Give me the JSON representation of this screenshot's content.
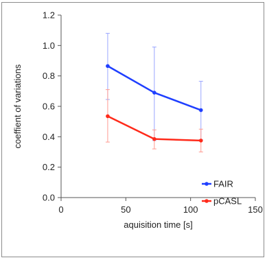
{
  "chart_data": {
    "type": "line",
    "title": "",
    "xlabel": "aquisition time [s]",
    "ylabel": "coeffient of variations",
    "xlim": [
      0,
      150
    ],
    "ylim": [
      0,
      1.2
    ],
    "x_ticks": [
      0,
      50,
      100,
      150
    ],
    "x_tick_labels": [
      "0",
      "50",
      "100",
      "150"
    ],
    "y_ticks": [
      0,
      0.2,
      0.4,
      0.6,
      0.8,
      1.0,
      1.2
    ],
    "y_tick_labels": [
      "0.0",
      "0.2",
      "0.4",
      "0.6",
      "0.8",
      "1.0",
      "1.2"
    ],
    "grid": false,
    "legend_position": "bottom-right",
    "series": [
      {
        "name": "FAIR",
        "color": "#1f3fff",
        "x": [
          36,
          72,
          108
        ],
        "y": [
          0.865,
          0.69,
          0.575
        ],
        "err_low": [
          0.645,
          0.375,
          0.38
        ],
        "err_high": [
          1.08,
          0.99,
          0.765
        ]
      },
      {
        "name": "pCASL",
        "color": "#ff2a1a",
        "x": [
          36,
          72,
          108
        ],
        "y": [
          0.535,
          0.385,
          0.375
        ],
        "err_low": [
          0.365,
          0.32,
          0.3
        ],
        "err_high": [
          0.71,
          0.445,
          0.45
        ]
      }
    ]
  }
}
